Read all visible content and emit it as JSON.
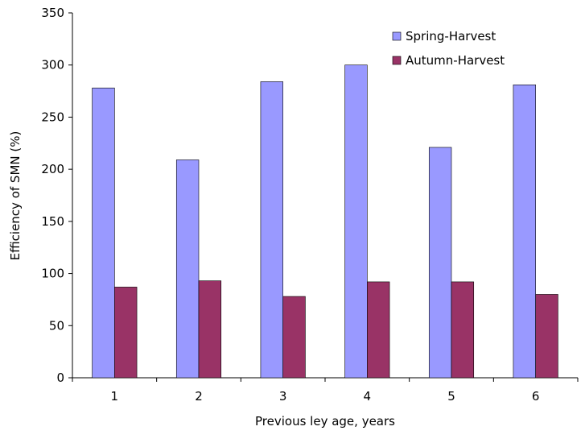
{
  "chart_data": {
    "type": "bar",
    "x_label": "Previous ley age, years",
    "y_label": "Efficiency of SMN (%)",
    "categories": [
      "1",
      "2",
      "3",
      "4",
      "5",
      "6"
    ],
    "series": [
      {
        "name": "Spring-Harvest",
        "color": "#9999ff",
        "values": [
          278,
          209,
          284,
          300,
          221,
          281
        ]
      },
      {
        "name": "Autumn-Harvest",
        "color": "#993366",
        "values": [
          87,
          93,
          78,
          92,
          92,
          80
        ]
      }
    ],
    "ylim": [
      0,
      350
    ],
    "yticks": [
      0,
      50,
      100,
      150,
      200,
      250,
      300,
      350
    ],
    "grid": false,
    "legend": "upper-right"
  }
}
